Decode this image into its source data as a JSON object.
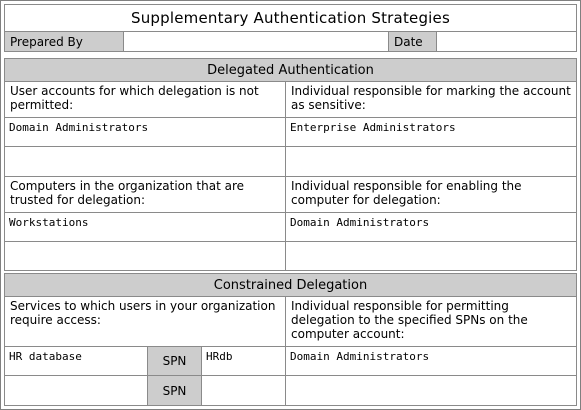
{
  "form": {
    "title": "Supplementary Authentication Strategies",
    "prepared_by_label": "Prepared By",
    "prepared_by_value": "",
    "date_label": "Date",
    "date_value": ""
  },
  "delegated": {
    "heading": "Delegated Authentication",
    "accounts_not_permitted_label": "User accounts for which delegation is not permitted:",
    "accounts_not_permitted_value": "Domain Administrators",
    "accounts_not_permitted_value2": "",
    "mark_sensitive_label": "Individual responsible for marking the account as sensitive:",
    "mark_sensitive_value": "Enterprise Administrators",
    "mark_sensitive_value2": "",
    "trusted_computers_label": "Computers in the organization that are trusted for delegation:",
    "trusted_computers_value": "Workstations",
    "trusted_computers_value2": "",
    "enable_computer_label": "Individual responsible for enabling the computer for delegation:",
    "enable_computer_value": "Domain Administrators",
    "enable_computer_value2": ""
  },
  "constrained": {
    "heading": "Constrained Delegation",
    "services_label": "Services to which users in your organization require access:",
    "permit_label": "Individual responsible for permitting delegation to the specified SPNs on the computer account:",
    "spn_label": "SPN",
    "rows": [
      {
        "service": "HR database",
        "spn": "HRdb",
        "responsible": "Domain Administrators"
      },
      {
        "service": "",
        "spn": "",
        "responsible": ""
      }
    ]
  },
  "colors": {
    "label_fill": "#cdcdcd",
    "border": "#8a8a8a"
  }
}
